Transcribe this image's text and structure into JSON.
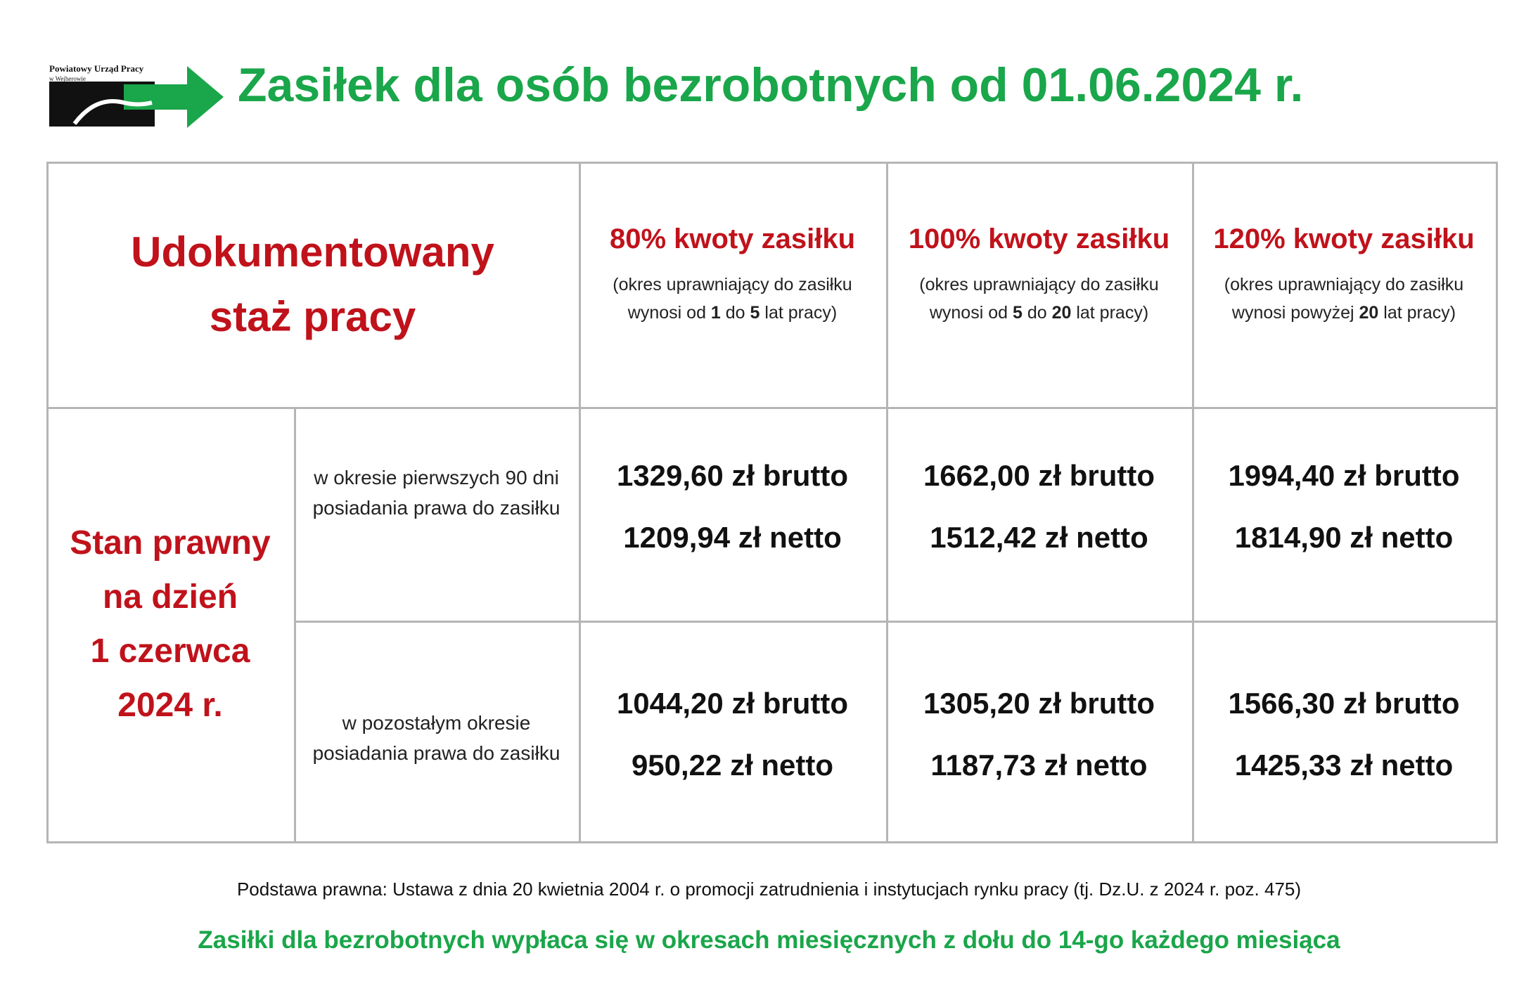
{
  "logo": {
    "name": "Powiatowy Urząd Pracy",
    "place": "w Wejherowie"
  },
  "title": "Zasiłek dla osób bezrobotnych od 01.06.2024 r.",
  "table": {
    "corner": "Udokumentowany staż pracy",
    "columns": [
      {
        "title": "80% kwoty zasiłku",
        "note": [
          "(okres uprawniający do zasiłku wynosi od ",
          "1",
          " do ",
          "5",
          " lat pracy)"
        ]
      },
      {
        "title": "100% kwoty zasiłku",
        "note": [
          "(okres uprawniający do zasiłku wynosi od ",
          "5",
          " do ",
          "20",
          " lat pracy)"
        ]
      },
      {
        "title": "120% kwoty zasiłku",
        "note": [
          "(okres uprawniający do zasiłku wynosi powyżej ",
          "20",
          " lat pracy)"
        ]
      }
    ],
    "row_group": [
      "Stan prawny",
      "na dzień",
      "1 czerwca",
      "2024 r."
    ],
    "rows": [
      {
        "label": "w okresie pierwszych 90 dni posiadania prawa do zasiłku",
        "cells": [
          [
            "1329,60 zł brutto",
            "1209,94 zł netto"
          ],
          [
            "1662,00 zł brutto",
            "1512,42 zł netto"
          ],
          [
            "1994,40 zł brutto",
            "1814,90 zł netto"
          ]
        ]
      },
      {
        "label": "w pozostałym okresie posiadania prawa do zasiłku",
        "cells": [
          [
            "1044,20 zł brutto",
            "950,22 zł netto"
          ],
          [
            "1305,20 zł brutto",
            "1187,73 zł netto"
          ],
          [
            "1566,30 zł brutto",
            "1425,33 zł netto"
          ]
        ]
      }
    ]
  },
  "footer": {
    "legal": "Podstawa prawna: Ustawa z dnia 20 kwietnia 2004 r. o promocji zatrudnienia i instytucjach rynku pracy (tj. Dz.U. z 2024 r. poz. 475)",
    "note": "Zasiłki dla bezrobotnych wypłaca się w okresach miesięcznych z dołu do 14-go każdego miesiąca"
  }
}
